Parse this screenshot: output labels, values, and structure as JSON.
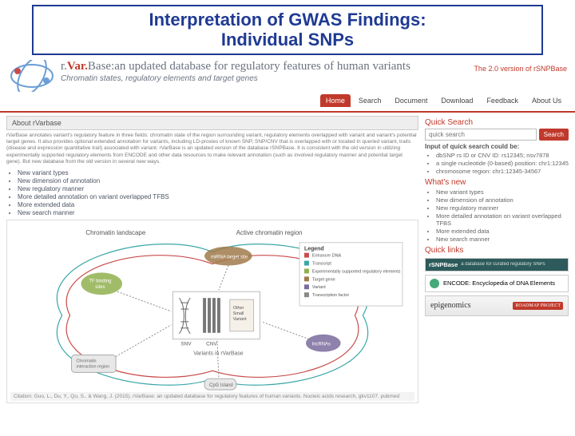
{
  "title_line1": "Interpretation of GWAS Findings:",
  "title_line2": "Individual SNPs",
  "title_fontsize": 22,
  "title_color": "#1f3a93",
  "header": {
    "brand_prefix": "r.",
    "brand_mid": "Var.",
    "brand_suffix": "Base:",
    "brand_rest": "an updated database for regulatory features of human variants",
    "brand_fontsize": 15,
    "tagline": "Chromatin states, regulatory elements and target genes",
    "tagline_fontsize": 10,
    "version": "The 2.0 version of rSNPBase"
  },
  "nav": [
    {
      "label": "Home",
      "active": true
    },
    {
      "label": "Search",
      "active": false
    },
    {
      "label": "Document",
      "active": false
    },
    {
      "label": "Download",
      "active": false
    },
    {
      "label": "Feedback",
      "active": false
    },
    {
      "label": "About Us",
      "active": false
    }
  ],
  "about": {
    "title": "About rVarbase",
    "desc": "rVarBase annotates variant's regulatory feature in three fields: chromatin state of the region surrounding variant, regulatory elements overlapped with variant and variant's potential target genes. It also provides optional extended annotation for variants, including LD-proxies of known SNP, SNP/CNV that is overlapped with or located in queried variant, traits (disease and expression quantitative trait) associated with variant. rVarBase is an updated version of the database rSNPBase. It is consistent with the old version in utilizing experimentally supported regulatory elements from ENCODE and other data resources to make relevant annotation (such as involved regulatory manner and potential target gene). But new database from the old version in several new ways.",
    "bullets": [
      "New variant types",
      "New dimension of annotation",
      "New regulatory manner",
      "More detailed annotation on variant overlapped TFBS",
      "More extended data",
      "New search manner"
    ]
  },
  "diagram": {
    "title_left": "Chromatin landscape",
    "title_right": "Active chromatin region",
    "legend_title": "Legend",
    "legend_items": [
      "Enhancer DNA",
      "Transcript",
      "Experimentally supported regulatory elements",
      "Target gene",
      "Variant",
      "Transcription factor"
    ],
    "center_labels": [
      "SNV",
      "CNV",
      "Other Small Variant"
    ],
    "center_caption": "Variants in rVarBase",
    "node_labels": [
      "TF binding sites",
      "miRNA target site",
      "lncRNAs",
      "CpG Island",
      "Chromatin interaction region"
    ],
    "colors": {
      "red": "#c94b4b",
      "teal": "#3aa6a6",
      "green": "#8fb04e",
      "brown": "#a07a4b",
      "purple": "#7a6b9e",
      "gray": "#888"
    }
  },
  "quicksearch": {
    "title": "Quick Search",
    "placeholder": "quick search",
    "button": "Search",
    "hint_head": "Input of quick search could be:",
    "hints": [
      "dbSNP rs ID or CNV ID: rs12345; nsv7878",
      "a single nucleotide (0-based) position: chr1:12345",
      "chromosome region: chr1:12345-34567"
    ]
  },
  "whatsnew": {
    "title": "What's new",
    "items": [
      "New variant types",
      "New dimension of annotation",
      "New regulatory manner",
      "More detailed annotation on variant overlapped TFBS",
      "More extended data",
      "New search manner"
    ]
  },
  "quicklinks": {
    "title": "Quick links",
    "rsnp": "rSNPBase",
    "rsnp_sub": "a database for curated regulatory SNPs",
    "encode": "ENCODE: Encyclopedia of DNA Elements",
    "epig": "epigenomics",
    "roadmap": "ROADMAP PROJECT"
  },
  "citation": "Citation: Guo, L., Du, Y., Qu, S., & Wang, J. (2015). rVarBase: an updated database for regulatory features of human variants. Nucleic acids research, gkv1107. pubmed"
}
